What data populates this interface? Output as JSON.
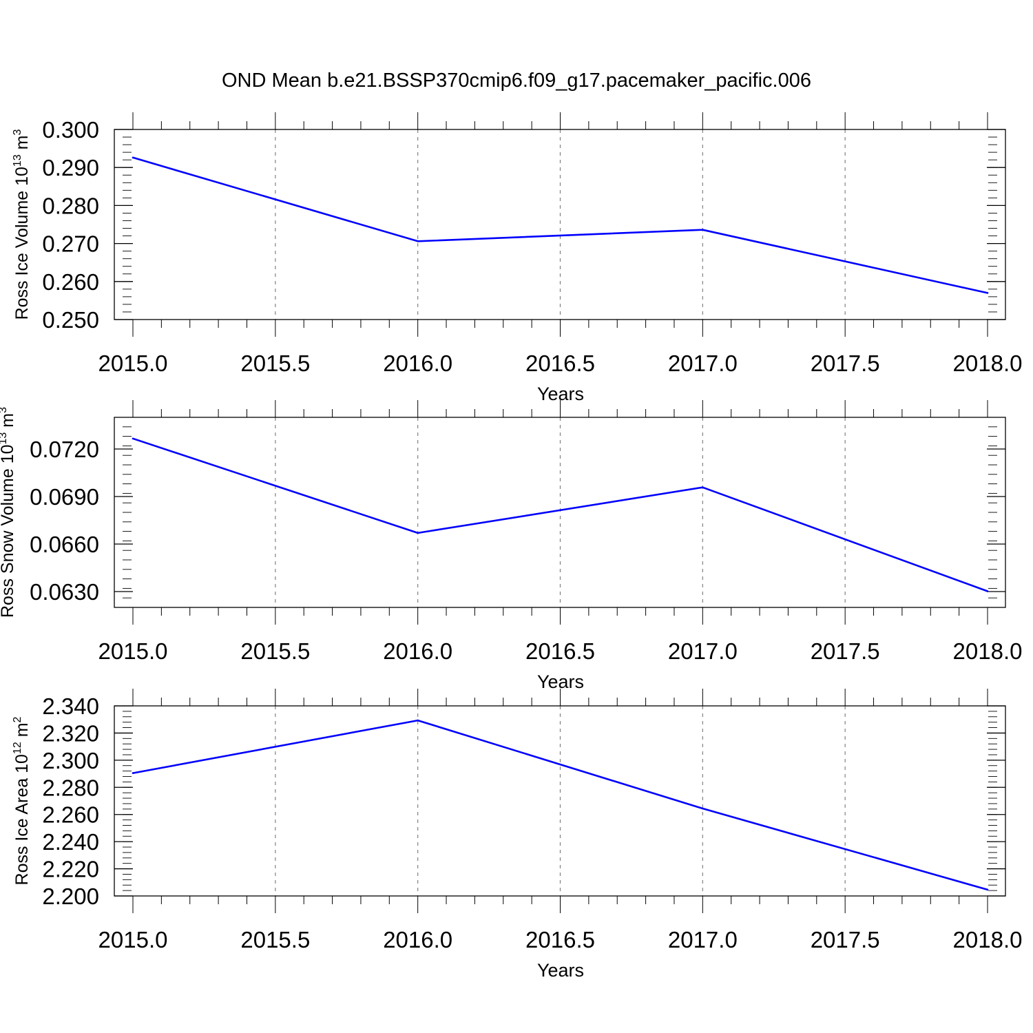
{
  "title": "OND Mean b.e21.BSSP370cmip6.f09_g17.pacemaker_pacific.006",
  "colors": {
    "line": "#0000ff",
    "axis": "#000000",
    "grid": "#808080"
  },
  "chart_data": [
    {
      "type": "line",
      "xlabel": "Years",
      "ylabel": {
        "text": "Ross Ice Volume 10",
        "sup": "13",
        "unit": " m",
        "unit_sup": "3"
      },
      "xlim": [
        2015.0,
        2018.0
      ],
      "ylim": [
        0.25,
        0.3
      ],
      "xticks": [
        "2015.0",
        "2015.5",
        "2016.0",
        "2016.5",
        "2017.0",
        "2017.5",
        "2018.0"
      ],
      "yticks": [
        "0.250",
        "0.260",
        "0.270",
        "0.280",
        "0.290",
        "0.300"
      ],
      "x": [
        2015,
        2016,
        2017,
        2018
      ],
      "y": [
        0.2926,
        0.2706,
        0.2736,
        0.257
      ]
    },
    {
      "type": "line",
      "xlabel": "Years",
      "ylabel": {
        "text": "Ross Snow Volume 10",
        "sup": "13",
        "unit": " m",
        "unit_sup": "3"
      },
      "xlim": [
        2015.0,
        2018.0
      ],
      "ylim": [
        0.062,
        0.074
      ],
      "xticks": [
        "2015.0",
        "2015.5",
        "2016.0",
        "2016.5",
        "2017.0",
        "2017.5",
        "2018.0"
      ],
      "yticks": [
        "0.0630",
        "0.0660",
        "0.0690",
        "0.0720"
      ],
      "x": [
        2015,
        2016,
        2017,
        2018
      ],
      "y": [
        0.07266,
        0.0667,
        0.06958,
        0.06302
      ]
    },
    {
      "type": "line",
      "xlabel": "Years",
      "ylabel": {
        "text": "Ross Ice Area 10",
        "sup": "12",
        "unit": " m",
        "unit_sup": "2"
      },
      "xlim": [
        2015.0,
        2018.0
      ],
      "ylim": [
        2.2,
        2.34
      ],
      "xticks": [
        "2015.0",
        "2015.5",
        "2016.0",
        "2016.5",
        "2017.0",
        "2017.5",
        "2018.0"
      ],
      "yticks": [
        "2.200",
        "2.220",
        "2.240",
        "2.260",
        "2.280",
        "2.300",
        "2.320",
        "2.340"
      ],
      "x": [
        2015,
        2016,
        2017,
        2018
      ],
      "y": [
        2.2905,
        2.3293,
        2.2644,
        2.2046
      ]
    }
  ]
}
